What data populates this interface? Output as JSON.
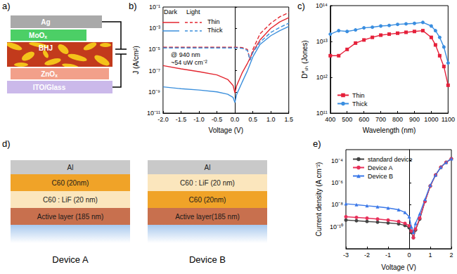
{
  "diagrams": {
    "a": {
      "panel_label": "a)",
      "layers": [
        {
          "text": "Ag",
          "color": "#a9a9a9"
        },
        {
          "text": "MoOₓ",
          "color": "#4ccf66"
        },
        {
          "text": "BHJ",
          "color": "#c23a1c"
        },
        {
          "text": "ZnOₓ",
          "color": "#f2a08a"
        },
        {
          "text": "ITO/Glass",
          "color": "#cbb9ea"
        }
      ]
    },
    "d": {
      "panel_label": "d)",
      "devices": [
        {
          "title": "Device A",
          "layers": [
            {
              "text": "Al",
              "color": "#c9c9c9"
            },
            {
              "text": "C60 (20nm)",
              "color": "#f0a328"
            },
            {
              "text": "C60 : LiF (20 nm)",
              "color": "#fbe6bd"
            },
            {
              "text": "Active layer (185 nm)",
              "color": "#c8704e"
            }
          ]
        },
        {
          "title": "Device B",
          "layers": [
            {
              "text": "Al",
              "color": "#c9c9c9"
            },
            {
              "text": "C60 : LiF (20 nm)",
              "color": "#fbe6bd"
            },
            {
              "text": "C60 (20nm)",
              "color": "#f0a328"
            },
            {
              "text": "Active layer(185 nm)",
              "color": "#c8704e"
            }
          ]
        }
      ]
    }
  },
  "chart_data": [
    {
      "panel_label": "b)",
      "type": "line",
      "x_label": "Voltage (V)",
      "y_label": "J (A/cm²)",
      "annotations": [
        "@ 940 nm",
        "~54 uW cm⁻²"
      ],
      "log": "y",
      "grid": false,
      "legend": "upper left",
      "x": [
        -2.0,
        -1.5,
        -1.0,
        -0.5,
        -0.2,
        -0.05,
        0,
        0.05,
        0.2,
        0.35,
        0.42,
        0.5,
        0.7,
        1.0,
        1.25,
        1.5
      ],
      "series": [
        {
          "name": "Thin",
          "condition": "Dark",
          "color": "#e3262f",
          "line_style": "solid",
          "values": [
            3e-07,
            1.5e-07,
            8e-08,
            4e-08,
            1.5e-08,
            4e-09,
            8e-10,
            4e-09,
            6e-08,
            5e-07,
            1.5e-06,
            6e-06,
            8e-05,
            0.001,
            0.004,
            0.01
          ]
        },
        {
          "name": "Thin",
          "condition": "Light",
          "color": "#e3262f",
          "line_style": "dashed",
          "values": [
            1.6e-05,
            1.6e-05,
            1.6e-05,
            1.6e-05,
            1.6e-05,
            1.6e-05,
            1.6e-05,
            1.6e-05,
            1.5e-05,
            1e-05,
            1e-06,
            1e-05,
            0.0003,
            0.003,
            0.012,
            0.03
          ]
        },
        {
          "name": "Thick",
          "condition": "Dark",
          "color": "#3b8fdc",
          "line_style": "solid",
          "values": [
            3e-09,
            2e-09,
            1.5e-09,
            1e-09,
            6e-10,
            3e-10,
            1e-10,
            6e-10,
            8e-09,
            1e-07,
            4e-07,
            2e-06,
            3e-05,
            0.0002,
            0.0006,
            0.0015
          ]
        },
        {
          "name": "Thick",
          "condition": "Light",
          "color": "#3b8fdc",
          "line_style": "dashed",
          "values": [
            1.4e-05,
            1.4e-05,
            1.4e-05,
            1.4e-05,
            1.4e-05,
            1.4e-05,
            1.4e-05,
            1.4e-05,
            1.3e-05,
            8e-06,
            1e-06,
            5e-06,
            5e-05,
            0.0004,
            0.0012,
            0.003
          ]
        }
      ],
      "xlim": [
        -2,
        1.5
      ],
      "xticks": [
        {
          "value": -2,
          "label": "-2.0"
        },
        -1.5,
        {
          "value": -1,
          "label": "-1.0"
        },
        -0.5,
        {
          "value": 0,
          "label": "0.0"
        },
        0.5,
        {
          "value": 1,
          "label": "1.0"
        },
        1.5
      ],
      "ylim": [
        1e-11,
        0.1
      ],
      "yticks": [
        {
          "value": 1e-11,
          "label": "10⁻¹¹"
        },
        {
          "value": 1e-09,
          "label": "10⁻⁹"
        },
        {
          "value": 1e-07,
          "label": "10⁻⁷"
        },
        {
          "value": 1e-05,
          "label": "10⁻⁵"
        },
        {
          "value": 0.001,
          "label": "10⁻³"
        },
        {
          "value": 0.1,
          "label": "10⁻¹"
        }
      ]
    },
    {
      "panel_label": "c)",
      "type": "line",
      "x_label": "Wavelength (nm)",
      "y_label": "D*ₛₕ (Jones)",
      "log": "y",
      "grid": false,
      "legend": "lower left",
      "x": [
        400,
        450,
        500,
        550,
        600,
        650,
        700,
        750,
        800,
        850,
        900,
        950,
        1000,
        1025,
        1050,
        1075,
        1100
      ],
      "series": [
        {
          "name": "Thin",
          "color": "#e5203a",
          "marker": "square",
          "line_style": "solid",
          "values": [
            4000000000000.0,
            4000000000000.0,
            6000000000000.0,
            9000000000000.0,
            11000000000000.0,
            13000000000000.0,
            15000000000000.0,
            16000000000000.0,
            17000000000000.0,
            18000000000000.0,
            19000000000000.0,
            20000000000000.0,
            13000000000000.0,
            8000000000000.0,
            4000000000000.0,
            2000000000000.0,
            600000000000.0
          ]
        },
        {
          "name": "Thick",
          "color": "#3a8ee0",
          "marker": "circle",
          "line_style": "solid",
          "values": [
            16000000000000.0,
            20000000000000.0,
            19000000000000.0,
            21000000000000.0,
            24000000000000.0,
            25000000000000.0,
            27000000000000.0,
            28000000000000.0,
            30000000000000.0,
            31000000000000.0,
            32000000000000.0,
            34000000000000.0,
            27000000000000.0,
            20000000000000.0,
            13000000000000.0,
            7000000000000.0,
            2500000000000.0
          ]
        }
      ],
      "xlim": [
        400,
        1100
      ],
      "xticks": [
        400,
        500,
        600,
        700,
        800,
        900,
        1000,
        1100
      ],
      "ylim": [
        100000000000.0,
        100000000000000.0
      ],
      "yticks": [
        {
          "value": 100000000000.0,
          "label": "10¹¹"
        },
        {
          "value": 1000000000000.0,
          "label": "10¹²"
        },
        {
          "value": 10000000000000.0,
          "label": "10¹³"
        },
        {
          "value": 100000000000000.0,
          "label": "10¹⁴"
        }
      ]
    },
    {
      "panel_label": "e)",
      "type": "line",
      "x_label": "Voltage (V)",
      "y_label": "Current density (A cm⁻²)",
      "log": "y",
      "grid": false,
      "legend": "upper left",
      "x": [
        -3,
        -2.5,
        -2,
        -1.5,
        -1,
        -0.5,
        -0.2,
        0,
        0.1,
        0.2,
        0.3,
        0.5,
        0.75,
        1,
        1.25,
        1.5,
        1.75,
        2
      ],
      "series": [
        {
          "name": "standard device",
          "color": "#444444",
          "marker": "circle",
          "line_style": "solid",
          "values": [
            4e-10,
            3.5e-10,
            3e-10,
            2.6e-10,
            2.2e-10,
            1.8e-10,
            1.3e-10,
            8e-11,
            3e-11,
            1e-11,
            5e-11,
            5e-10,
            2e-08,
            5e-07,
            5e-06,
            2.5e-05,
            7e-05,
            0.00015
          ]
        },
        {
          "name": "Device A",
          "color": "#e8305a",
          "marker": "circle",
          "line_style": "solid",
          "values": [
            8e-10,
            7e-10,
            6e-10,
            5e-10,
            4e-10,
            3e-10,
            2e-10,
            1.2e-10,
            4e-11,
            1e-11,
            6e-11,
            6e-10,
            2e-08,
            5e-07,
            5e-06,
            2.5e-05,
            7e-05,
            0.00015
          ]
        },
        {
          "name": "Device B",
          "color": "#3a78e8",
          "marker": "triangle",
          "line_style": "solid",
          "values": [
            1.2e-08,
            1e-08,
            8e-09,
            6.5e-09,
            5e-09,
            3.5e-09,
            2e-09,
            8e-10,
            1e-10,
            3e-11,
            2e-10,
            1.5e-09,
            3e-08,
            6e-07,
            5e-06,
            2.5e-05,
            7e-05,
            0.00015
          ]
        }
      ],
      "xlim": [
        -3,
        2
      ],
      "xticks": [
        -3,
        -2,
        -1,
        0,
        1,
        2
      ],
      "ylim": [
        1e-12,
        0.001
      ],
      "yticks": [
        {
          "value": 1e-10,
          "label": "10⁻¹⁰"
        },
        {
          "value": 1e-08,
          "label": "10⁻⁸"
        },
        {
          "value": 1e-06,
          "label": "10⁻⁶"
        },
        {
          "value": 0.0001,
          "label": "10⁻⁴"
        }
      ]
    }
  ]
}
